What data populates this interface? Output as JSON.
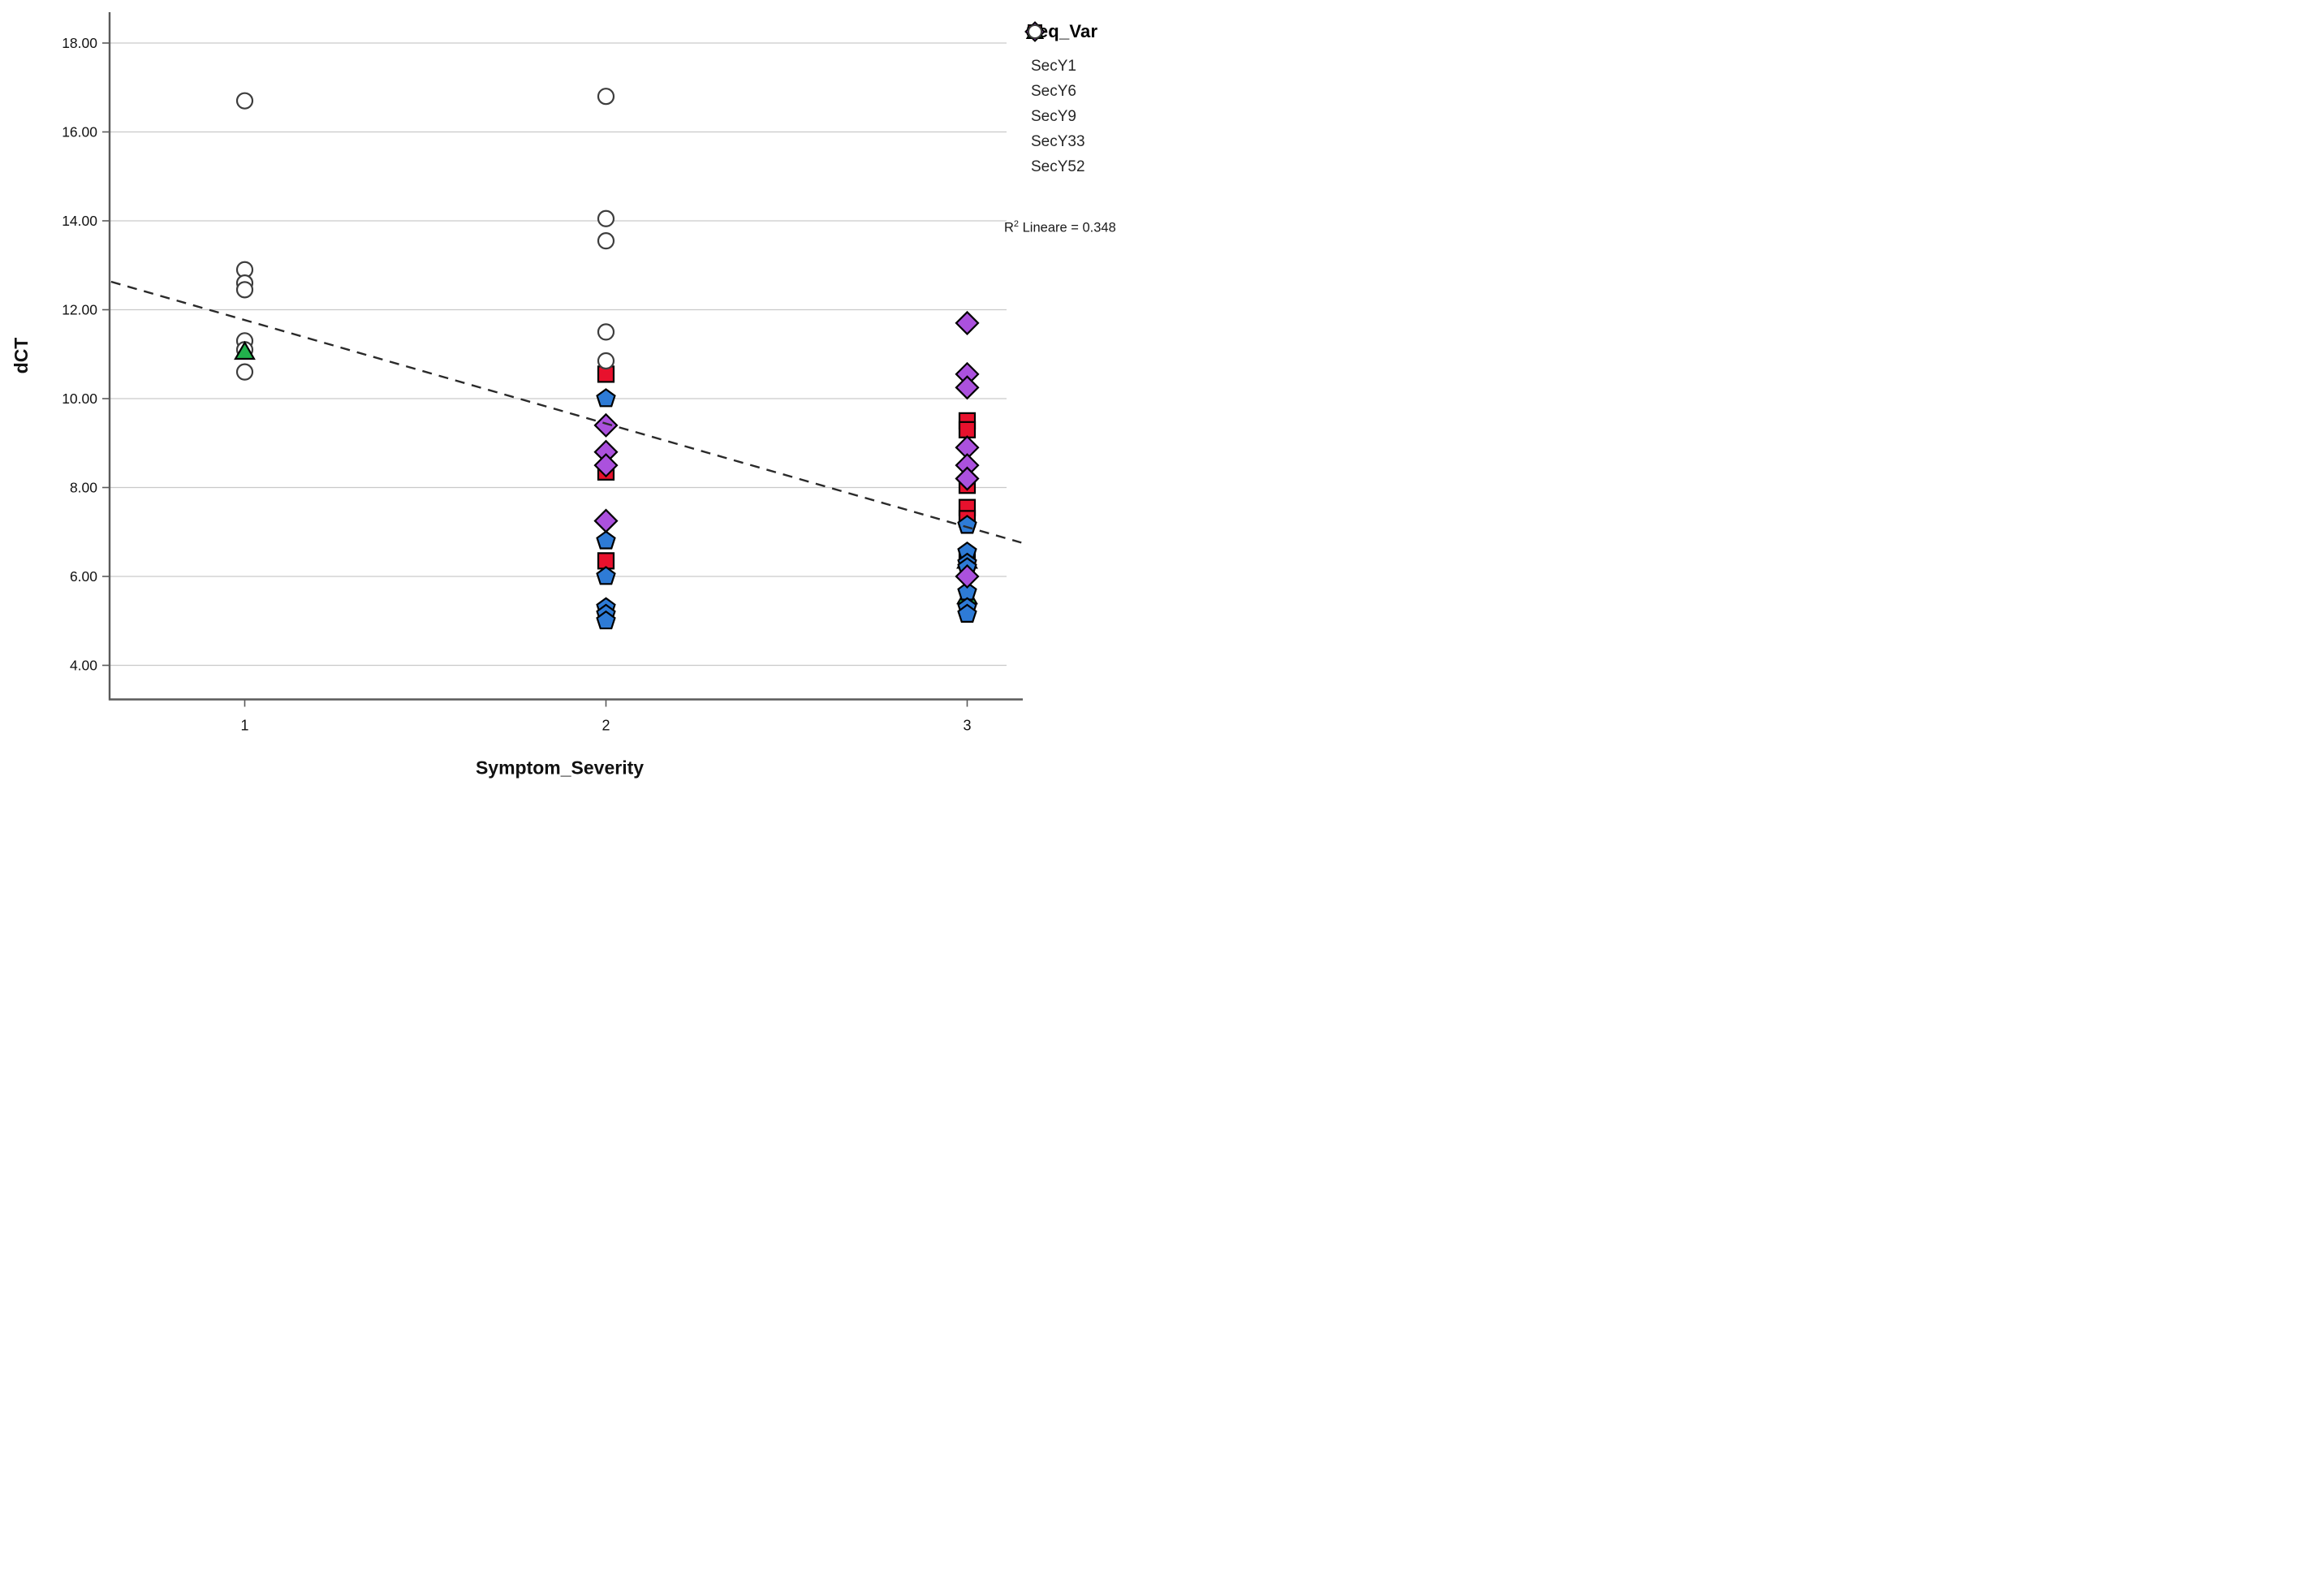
{
  "page": {
    "background": "#ffffff"
  },
  "chart_data": {
    "type": "scatter",
    "title": "",
    "xlabel": "Symptom_Severity",
    "ylabel": "dCT",
    "x_ticks": [
      "1",
      "2",
      "3"
    ],
    "y_ticks": [
      "18.00",
      "16.00",
      "14.00",
      "12.00",
      "10.00",
      "8.00",
      "6.00",
      "4.00"
    ],
    "xlim": [
      0.63,
      3.15
    ],
    "ylim": [
      3.2,
      18.75
    ],
    "grid": {
      "horizontal_major": true,
      "color": "#c9c9c9"
    },
    "legend_title": "Seq_Var",
    "legend_position": "top-right-outside",
    "series": [
      {
        "name": "SecY1",
        "marker": "square",
        "color": "#e8112d",
        "points": [
          [
            2,
            10.55
          ],
          [
            2,
            8.35
          ],
          [
            2,
            6.35
          ],
          [
            3,
            9.5
          ],
          [
            3,
            9.3
          ],
          [
            3,
            8.05
          ],
          [
            3,
            7.55
          ],
          [
            3,
            7.3
          ],
          [
            3,
            6.4
          ]
        ]
      },
      {
        "name": "SecY6",
        "marker": "triangle",
        "color": "#22b14c",
        "points": [
          [
            1,
            11.05
          ],
          [
            3,
            6.35
          ],
          [
            3,
            5.55
          ]
        ]
      },
      {
        "name": "SecY9",
        "marker": "pentagon",
        "color": "#2e7bd6",
        "points": [
          [
            2,
            10.0
          ],
          [
            2,
            6.8
          ],
          [
            2,
            6.0
          ],
          [
            2,
            5.3
          ],
          [
            2,
            5.15
          ],
          [
            2,
            5.0
          ],
          [
            3,
            7.15
          ],
          [
            3,
            6.55
          ],
          [
            3,
            6.3
          ],
          [
            3,
            6.2
          ],
          [
            3,
            5.65
          ],
          [
            3,
            5.3
          ],
          [
            3,
            5.15
          ]
        ]
      },
      {
        "name": "SecY33",
        "marker": "diamond",
        "color": "#ab51dd",
        "points": [
          [
            2,
            9.4
          ],
          [
            2,
            8.8
          ],
          [
            2,
            8.5
          ],
          [
            2,
            7.25
          ],
          [
            3,
            11.7
          ],
          [
            3,
            10.55
          ],
          [
            3,
            10.25
          ],
          [
            3,
            8.9
          ],
          [
            3,
            8.5
          ],
          [
            3,
            8.2
          ],
          [
            3,
            6.0
          ]
        ]
      },
      {
        "name": "SecY52",
        "marker": "circle",
        "color": "#ffffff",
        "points": [
          [
            1,
            16.7
          ],
          [
            1,
            12.9
          ],
          [
            1,
            12.6
          ],
          [
            1,
            12.45
          ],
          [
            1,
            11.3
          ],
          [
            1,
            11.1
          ],
          [
            1,
            10.6
          ],
          [
            2,
            16.8
          ],
          [
            2,
            14.05
          ],
          [
            2,
            13.55
          ],
          [
            2,
            11.5
          ],
          [
            2,
            10.85
          ]
        ]
      }
    ],
    "draw_order": [
      "SecY1",
      "SecY52",
      "SecY6",
      "SecY9",
      "SecY33"
    ],
    "trend_line": {
      "style": "dashed",
      "color": "#2a2a2a",
      "x1": 0.63,
      "y1": 12.63,
      "x2": 3.15,
      "y2": 6.76,
      "r_squared": 0.348
    }
  },
  "annotation": {
    "r2_prefix": "R",
    "r2_sup": "2",
    "r2_rest": " Lineare = 0.348"
  }
}
